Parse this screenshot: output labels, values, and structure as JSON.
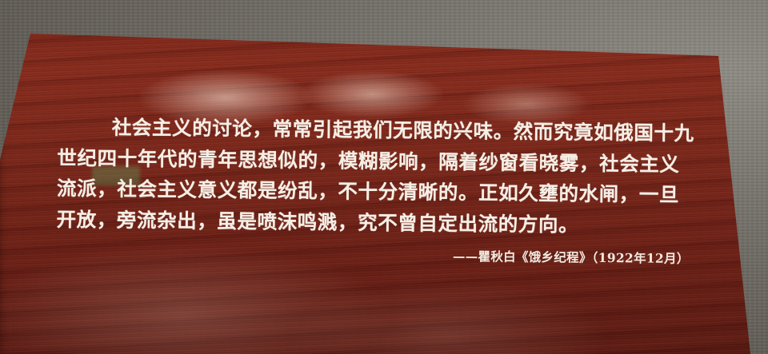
{
  "plaque": {
    "quote_lines": [
      "社会主义的讨论，常常引起我们无限的兴味。然而究竟如俄国十九",
      "世纪四十年代的青年思想似的，模糊影响，隔着纱窗看晓雾，社会主义",
      "流派，社会主义意义都是纷乱，不十分清晰的。正如久壅的水闸，一旦",
      "开放，旁流杂出，虽是喷沫鸣溅，究不曾自定出流的方向。"
    ],
    "attribution": "——瞿秋白《饿乡纪程》（1922年12月）"
  },
  "colors": {
    "wood": "#7a2418",
    "text": "#f6efe6",
    "wall": "#6f6b64"
  }
}
